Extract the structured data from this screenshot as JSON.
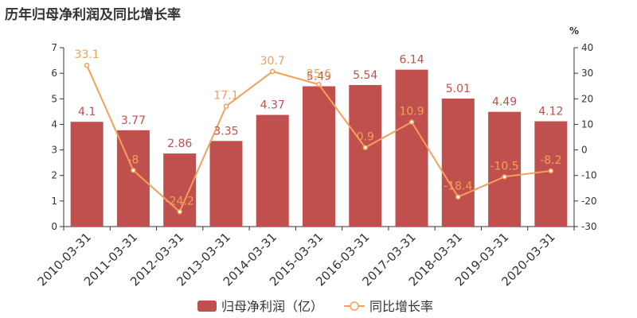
{
  "chart_data": {
    "type": "bar",
    "title": "历年归母净利润及同比增长率",
    "categories": [
      "2010-03-31",
      "2011-03-31",
      "2012-03-31",
      "2013-03-31",
      "2014-03-31",
      "2015-03-31",
      "2016-03-31",
      "2017-03-31",
      "2018-03-31",
      "2019-03-31",
      "2020-03-31"
    ],
    "series": [
      {
        "name": "归母净利润（亿）",
        "type": "bar",
        "axis": "left",
        "color": "#c0504d",
        "values": [
          4.1,
          3.77,
          2.86,
          3.35,
          4.37,
          5.49,
          5.54,
          6.14,
          5.01,
          4.49,
          4.12
        ],
        "labels": [
          "4.1",
          "3.77",
          "2.86",
          "3.35",
          "4.37",
          "5.49",
          "5.54",
          "6.14",
          "5.01",
          "4.49",
          "4.12"
        ]
      },
      {
        "name": "同比增长率",
        "type": "line",
        "axis": "right",
        "color": "#f2a05a",
        "values": [
          33.1,
          -8,
          -24.2,
          17.1,
          30.7,
          25.6,
          0.9,
          10.9,
          -18.4,
          -10.5,
          -8.2
        ],
        "labels": [
          "33.1",
          "-8",
          "-24.2",
          "17.1",
          "30.7",
          "25.6",
          "0.9",
          "10.9",
          "-18.4",
          "-10.5",
          "-8.2"
        ]
      }
    ],
    "y_left": {
      "min": 0,
      "max": 7,
      "ticks": [
        "0",
        "1",
        "2",
        "3",
        "4",
        "5",
        "6",
        "7"
      ]
    },
    "y_right": {
      "min": -30,
      "max": 40,
      "unit": "%",
      "ticks": [
        "-30",
        "-20",
        "-10",
        "0",
        "10",
        "20",
        "30",
        "40"
      ]
    },
    "grid": false,
    "legend_position": "bottom-center"
  }
}
